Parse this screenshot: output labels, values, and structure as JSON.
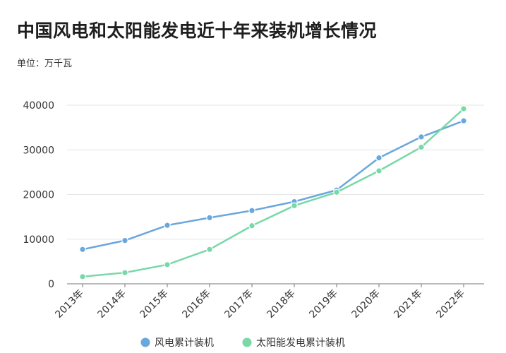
{
  "title": "中国风电和太阳能发电近十年来装机增长情况",
  "unit_label": "单位：万千瓦",
  "colors": {
    "wind": "#6aa7dd",
    "solar": "#79d8a7",
    "grid": "#e6e6e6",
    "axis": "#777777"
  },
  "chart_data": {
    "type": "line",
    "title": "中国风电和太阳能发电近十年来装机增长情况",
    "ylabel": "单位：万千瓦",
    "xlabel": "",
    "categories": [
      "2013年",
      "2014年",
      "2015年",
      "2016年",
      "2017年",
      "2018年",
      "2019年",
      "2020年",
      "2021年",
      "2022年"
    ],
    "ylim": [
      0,
      40000
    ],
    "yticks": [
      0,
      10000,
      20000,
      30000,
      40000
    ],
    "grid": true,
    "legend_position": "bottom",
    "series": [
      {
        "name": "风电累计装机",
        "color": "#6aa7dd",
        "values": [
          7700,
          9700,
          13100,
          14800,
          16400,
          18400,
          21000,
          28200,
          32900,
          36500
        ]
      },
      {
        "name": "太阳能发电累计装机",
        "color": "#79d8a7",
        "values": [
          1600,
          2500,
          4300,
          7700,
          13000,
          17500,
          20500,
          25300,
          30600,
          39200
        ]
      }
    ]
  }
}
